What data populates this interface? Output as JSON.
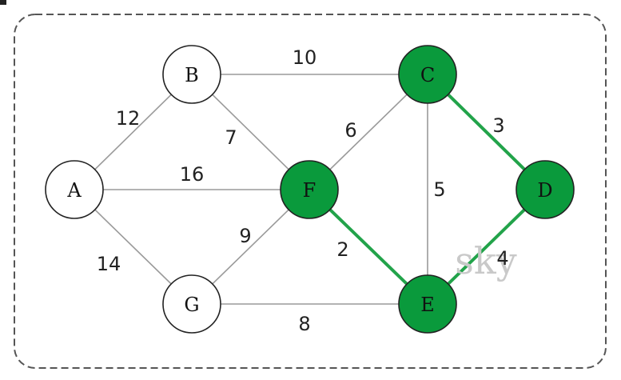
{
  "graph": {
    "nodes": [
      {
        "id": "A",
        "label": "A",
        "selected": false
      },
      {
        "id": "B",
        "label": "B",
        "selected": false
      },
      {
        "id": "C",
        "label": "C",
        "selected": true
      },
      {
        "id": "D",
        "label": "D",
        "selected": true
      },
      {
        "id": "E",
        "label": "E",
        "selected": true
      },
      {
        "id": "F",
        "label": "F",
        "selected": true
      },
      {
        "id": "G",
        "label": "G",
        "selected": false
      }
    ],
    "edges": [
      {
        "from": "A",
        "to": "B",
        "weight": "12",
        "highlighted": false
      },
      {
        "from": "A",
        "to": "F",
        "weight": "16",
        "highlighted": false
      },
      {
        "from": "A",
        "to": "G",
        "weight": "14",
        "highlighted": false
      },
      {
        "from": "B",
        "to": "C",
        "weight": "10",
        "highlighted": false
      },
      {
        "from": "B",
        "to": "F",
        "weight": "7",
        "highlighted": false
      },
      {
        "from": "G",
        "to": "F",
        "weight": "9",
        "highlighted": false
      },
      {
        "from": "G",
        "to": "E",
        "weight": "8",
        "highlighted": false
      },
      {
        "from": "F",
        "to": "C",
        "weight": "6",
        "highlighted": false
      },
      {
        "from": "F",
        "to": "E",
        "weight": "2",
        "highlighted": true
      },
      {
        "from": "C",
        "to": "E",
        "weight": "5",
        "highlighted": false
      },
      {
        "from": "C",
        "to": "D",
        "weight": "3",
        "highlighted": true
      },
      {
        "from": "E",
        "to": "D",
        "weight": "4",
        "highlighted": true
      }
    ]
  },
  "watermark": "sky",
  "colors": {
    "selected_fill": "#0a9a3c",
    "unselected_fill": "#ffffff",
    "highlight_edge": "#22a34a",
    "normal_edge": "#9a9a9a"
  }
}
